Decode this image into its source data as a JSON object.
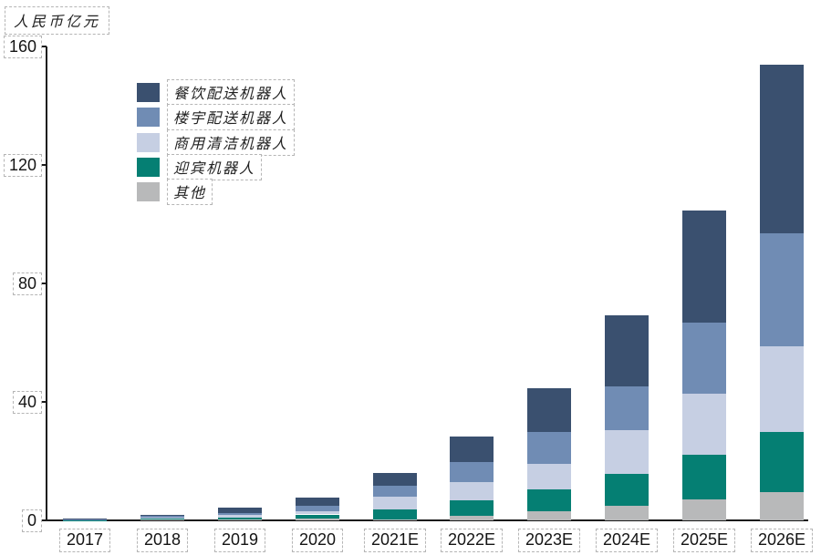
{
  "chart_data": {
    "type": "bar",
    "stacked": true,
    "unit": "人民币亿元",
    "categories": [
      "2017",
      "2018",
      "2019",
      "2020",
      "2021E",
      "2022E",
      "2023E",
      "2024E",
      "2025E",
      "2026E"
    ],
    "series": [
      {
        "name": "餐饮配送机器人",
        "color": "#3a506f",
        "values": [
          0.2,
          0.6,
          1.8,
          2.8,
          4.3,
          8.7,
          14.5,
          24.0,
          37.8,
          56.9
        ]
      },
      {
        "name": "楼宇配送机器人",
        "color": "#708cb4",
        "values": [
          0.1,
          0.6,
          0.8,
          1.7,
          3.6,
          6.7,
          11.0,
          14.7,
          24.0,
          38.1
        ]
      },
      {
        "name": "商用清洁机器人",
        "color": "#c6cfe3",
        "values": [
          0.1,
          0.3,
          0.8,
          1.2,
          4.2,
          6.1,
          8.6,
          14.8,
          20.6,
          29.0
        ]
      },
      {
        "name": "迎宾机器人",
        "color": "#057f73",
        "values": [
          0.1,
          0.3,
          0.7,
          1.4,
          3.5,
          5.4,
          7.4,
          10.8,
          15.1,
          20.3
        ]
      },
      {
        "name": "其他",
        "color": "#b8b9ba",
        "values": [
          0.0,
          0.2,
          0.2,
          0.6,
          0.3,
          1.4,
          3.0,
          4.9,
          7.1,
          9.5
        ]
      }
    ],
    "totals": [
      0.5,
      2.0,
      4.3,
      7.7,
      15.9,
      28.3,
      44.5,
      69.2,
      104.6,
      153.8
    ],
    "y_axis": {
      "ticks": [
        0,
        40,
        80,
        120,
        160
      ],
      "min": 0,
      "max": 160
    },
    "x_axis": {
      "label": ""
    },
    "legend_position": "inside-top-left",
    "grid": false,
    "annotation_style": "dashed-boxes-around-labels"
  }
}
